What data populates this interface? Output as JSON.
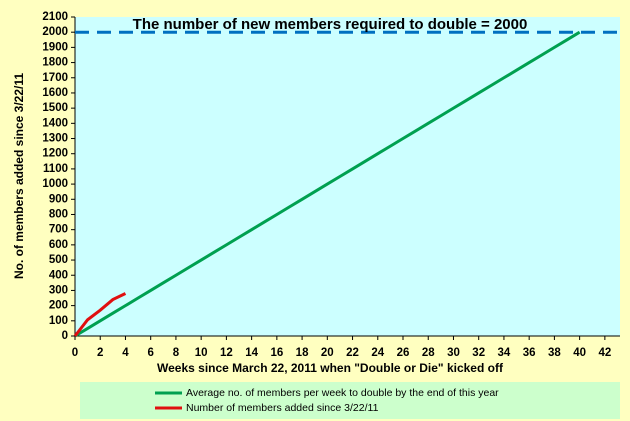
{
  "chart_data": {
    "type": "line",
    "title": "The number of new members required to double = 2000",
    "x_label": "Weeks since March 22, 2011 when \"Double or Die\" kicked off",
    "y_label": "No. of  members added since 3/22/11",
    "xlim": [
      0,
      43.2
    ],
    "xticks": [
      0,
      2,
      4,
      6,
      8,
      10,
      12,
      14,
      16,
      18,
      20,
      22,
      24,
      26,
      28,
      30,
      32,
      34,
      36,
      38,
      40,
      42
    ],
    "ylim": [
      0,
      2100
    ],
    "yticks": [
      0,
      100,
      200,
      300,
      400,
      500,
      600,
      700,
      800,
      900,
      1000,
      1100,
      1200,
      1300,
      1400,
      1500,
      1600,
      1700,
      1800,
      1900,
      2000,
      2100
    ],
    "grid": false,
    "reference_line": {
      "value": 2000,
      "color": "#0070c0"
    },
    "series": [
      {
        "name": "Average no. of members per week to double by the end of this year",
        "color": "#00a050",
        "x": [
          0,
          1,
          2,
          3,
          4,
          5,
          6,
          7,
          8,
          9,
          10,
          11,
          12,
          13,
          14,
          15,
          16,
          17,
          18,
          19,
          20,
          21,
          22,
          23,
          24,
          25,
          26,
          27,
          28,
          29,
          30,
          31,
          32,
          33,
          34,
          35,
          36,
          37,
          38,
          39,
          40
        ],
        "values": [
          0,
          50,
          100,
          150,
          200,
          250,
          300,
          350,
          400,
          450,
          500,
          550,
          600,
          650,
          700,
          750,
          800,
          850,
          900,
          950,
          1000,
          1050,
          1100,
          1150,
          1200,
          1250,
          1300,
          1350,
          1400,
          1450,
          1500,
          1550,
          1600,
          1650,
          1700,
          1750,
          1800,
          1850,
          1900,
          1950,
          2000
        ]
      },
      {
        "name": "Number of members added since 3/22/11",
        "color": "#e01010",
        "x": [
          0,
          1,
          2,
          3,
          4
        ],
        "values": [
          0,
          107,
          170,
          240,
          280
        ]
      }
    ]
  }
}
